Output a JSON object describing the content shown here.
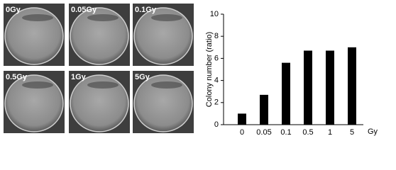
{
  "panels": {
    "labels": [
      "0Gy",
      "0.05Gy",
      "0.1Gy",
      "0.5Gy",
      "1Gy",
      "5Gy"
    ]
  },
  "chart_data": {
    "type": "bar",
    "y_label": "Colony number (ratio)",
    "x_label": "Gy",
    "categories": [
      "0",
      "0.05",
      "0.1",
      "0.5",
      "1",
      "5"
    ],
    "values": [
      1.0,
      2.7,
      5.6,
      6.7,
      6.7,
      7.0
    ],
    "color": "#000000",
    "ylim": [
      0,
      10
    ],
    "yticks": [
      0,
      2,
      4,
      6,
      8,
      10
    ]
  }
}
